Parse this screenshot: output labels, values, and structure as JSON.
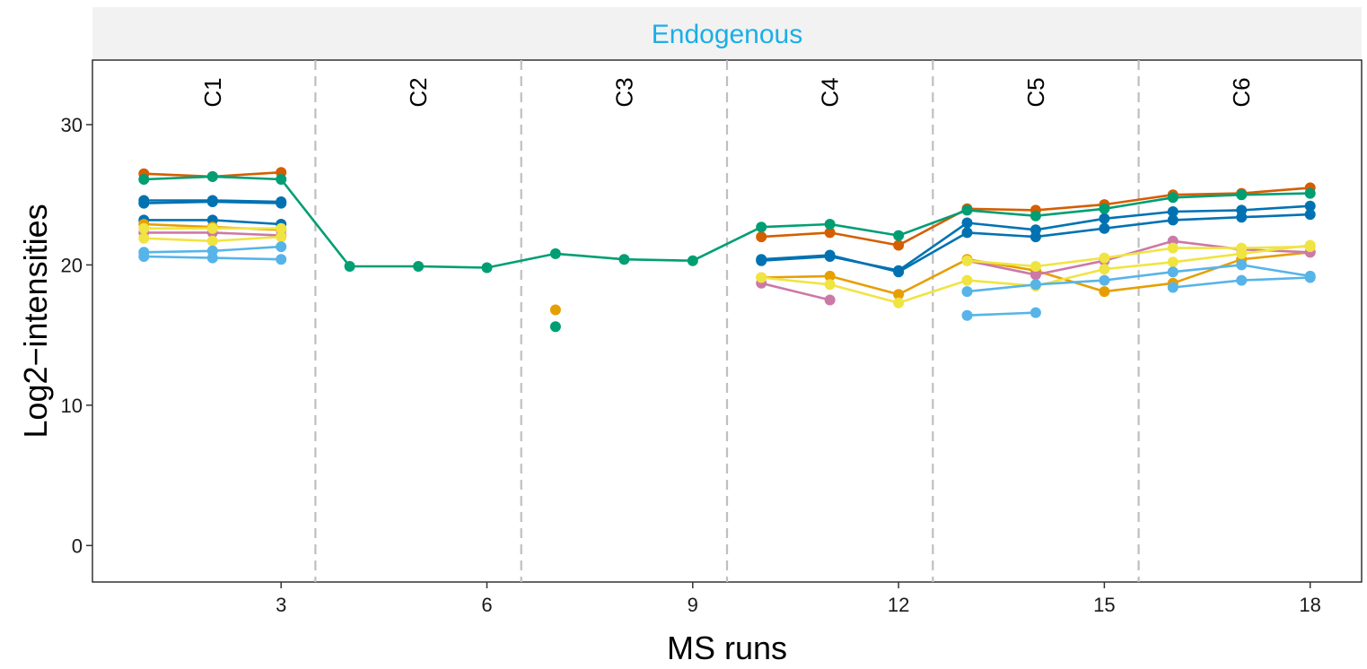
{
  "chart_data": {
    "type": "line",
    "facet_title": "Endogenous",
    "xlabel": "MS runs",
    "ylabel": "Log2−intensities",
    "xlim": [
      0.25,
      18.75
    ],
    "ylim": [
      -2.6,
      34.6
    ],
    "x_ticks": [
      3,
      6,
      9,
      12,
      15,
      18
    ],
    "y_ticks": [
      0,
      10,
      20,
      30
    ],
    "grid": false,
    "condition_boundaries": [
      3.5,
      6.5,
      9.5,
      12.5,
      15.5
    ],
    "conditions": [
      {
        "label": "C1",
        "x": 2
      },
      {
        "label": "C2",
        "x": 5
      },
      {
        "label": "C3",
        "x": 8
      },
      {
        "label": "C4",
        "x": 11
      },
      {
        "label": "C5",
        "x": 14
      },
      {
        "label": "C6",
        "x": 17
      }
    ],
    "colors": {
      "facet_title": "#1aafe6",
      "facet_strip": "#f2f2f2",
      "boundary": "#bfbfbf"
    },
    "series": [
      {
        "color": "#D55E00",
        "x": [
          1,
          2,
          3,
          10,
          11,
          12,
          13,
          14,
          15,
          16,
          17,
          18
        ],
        "y": [
          26.5,
          26.3,
          26.6,
          22.0,
          22.3,
          21.4,
          24.0,
          23.9,
          24.3,
          25.0,
          25.1,
          25.5
        ]
      },
      {
        "color": "#009E73",
        "x": [
          1,
          2,
          3,
          4,
          5,
          6,
          7,
          8,
          9,
          10,
          11,
          12,
          13,
          14,
          15,
          16,
          17,
          18
        ],
        "y": [
          26.1,
          26.3,
          26.1,
          19.9,
          19.9,
          19.8,
          20.8,
          20.4,
          20.3,
          22.7,
          22.9,
          22.1,
          23.9,
          23.5,
          24.0,
          24.8,
          25.0,
          25.1
        ]
      },
      {
        "color": "#0072B2",
        "x": [
          1,
          2,
          3,
          10,
          11,
          12,
          13,
          14,
          15,
          16,
          17,
          18
        ],
        "y": [
          24.6,
          24.6,
          24.5,
          20.3,
          20.6,
          19.6,
          23.0,
          22.5,
          23.3,
          23.8,
          23.9,
          24.2
        ]
      },
      {
        "color": "#0072B2",
        "x": [
          1,
          2,
          3,
          10,
          11,
          12,
          13,
          14,
          15,
          16,
          17,
          18
        ],
        "y": [
          24.4,
          24.5,
          24.4,
          20.4,
          20.7,
          19.5,
          22.3,
          22.0,
          22.6,
          23.2,
          23.4,
          23.6
        ]
      },
      {
        "color": "#0072B2",
        "x": [
          1,
          2,
          3
        ],
        "y": [
          23.2,
          23.2,
          22.9
        ]
      },
      {
        "color": "#E69F00",
        "x": [
          1,
          2,
          3,
          7,
          10,
          11,
          12,
          13,
          14,
          15,
          16,
          17,
          18
        ],
        "y": [
          22.9,
          22.7,
          22.5,
          16.8,
          19.1,
          19.2,
          17.9,
          20.4,
          19.6,
          18.1,
          18.7,
          20.4,
          20.9
        ]
      },
      {
        "color": "#CC79A7",
        "x": [
          1,
          2,
          3,
          10,
          11,
          13,
          14,
          15,
          16,
          17,
          18
        ],
        "y": [
          22.3,
          22.3,
          22.1,
          18.7,
          17.5,
          20.3,
          19.3,
          20.3,
          21.7,
          21.1,
          20.9
        ]
      },
      {
        "color": "#F0E442",
        "x": [
          1,
          2,
          3,
          10,
          11,
          12,
          13,
          14,
          15,
          16,
          17,
          18
        ],
        "y": [
          22.6,
          22.6,
          22.6,
          19.1,
          18.6,
          17.3,
          18.9,
          18.5,
          19.7,
          20.2,
          20.8,
          21.4
        ]
      },
      {
        "color": "#F0E442",
        "x": [
          1,
          2,
          3,
          13,
          14,
          15,
          16,
          17,
          18
        ],
        "y": [
          21.9,
          21.7,
          22.0,
          20.3,
          19.9,
          20.5,
          21.2,
          21.2,
          21.3
        ]
      },
      {
        "color": "#56B4E9",
        "x": [
          1,
          2,
          3,
          13,
          14,
          15,
          16,
          17,
          18
        ],
        "y": [
          20.9,
          21.0,
          21.3,
          18.1,
          18.6,
          18.9,
          19.5,
          20.0,
          19.2
        ]
      },
      {
        "color": "#56B4E9",
        "x": [
          1,
          2,
          3,
          13,
          14,
          16,
          17,
          18
        ],
        "y": [
          20.6,
          20.5,
          20.4,
          16.4,
          16.6,
          18.4,
          18.9,
          19.1
        ]
      },
      {
        "color": "#009E73",
        "x": [
          7
        ],
        "y": [
          15.6
        ]
      }
    ]
  }
}
